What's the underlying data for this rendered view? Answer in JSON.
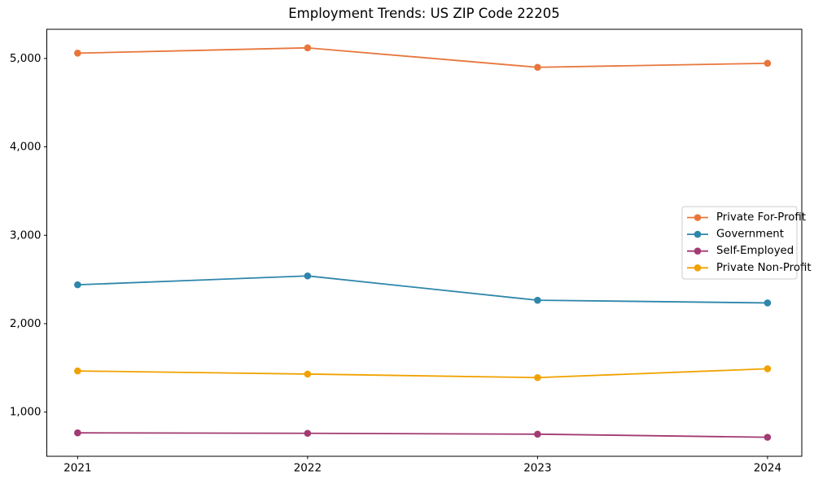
{
  "window": {
    "background": "#ffffff"
  },
  "chart_data": {
    "type": "line",
    "title": "Employment Trends: US ZIP Code 22205",
    "x": [
      2021,
      2022,
      2023,
      2024
    ],
    "x_tick_labels": [
      "2021",
      "2022",
      "2023",
      "2024"
    ],
    "series": [
      {
        "name": "Private For-Profit",
        "color": "#E8763C",
        "values": [
          5060,
          5120,
          4900,
          4945
        ]
      },
      {
        "name": "Government",
        "color": "#2E86AB",
        "values": [
          2440,
          2540,
          2265,
          2235
        ]
      },
      {
        "name": "Self-Employed",
        "color": "#A23B72",
        "values": [
          765,
          760,
          750,
          715
        ]
      },
      {
        "name": "Private Non-Profit",
        "color": "#F0A202",
        "values": [
          1465,
          1430,
          1390,
          1490
        ]
      }
    ],
    "y_ticks": [
      1000,
      2000,
      3000,
      4000,
      5000
    ],
    "y_tick_labels": [
      "1,000",
      "2,000",
      "3,000",
      "4,000",
      "5,000"
    ],
    "ylim": [
      500,
      5330
    ],
    "xlim": [
      2020.866,
      2024.149
    ],
    "xlabel": "",
    "ylabel": "",
    "grid": false,
    "marker": "circle",
    "axis_color": "#000000",
    "legend": {
      "position": "right-middle",
      "background": "#ffffff",
      "border_color": "#cccccc"
    }
  }
}
